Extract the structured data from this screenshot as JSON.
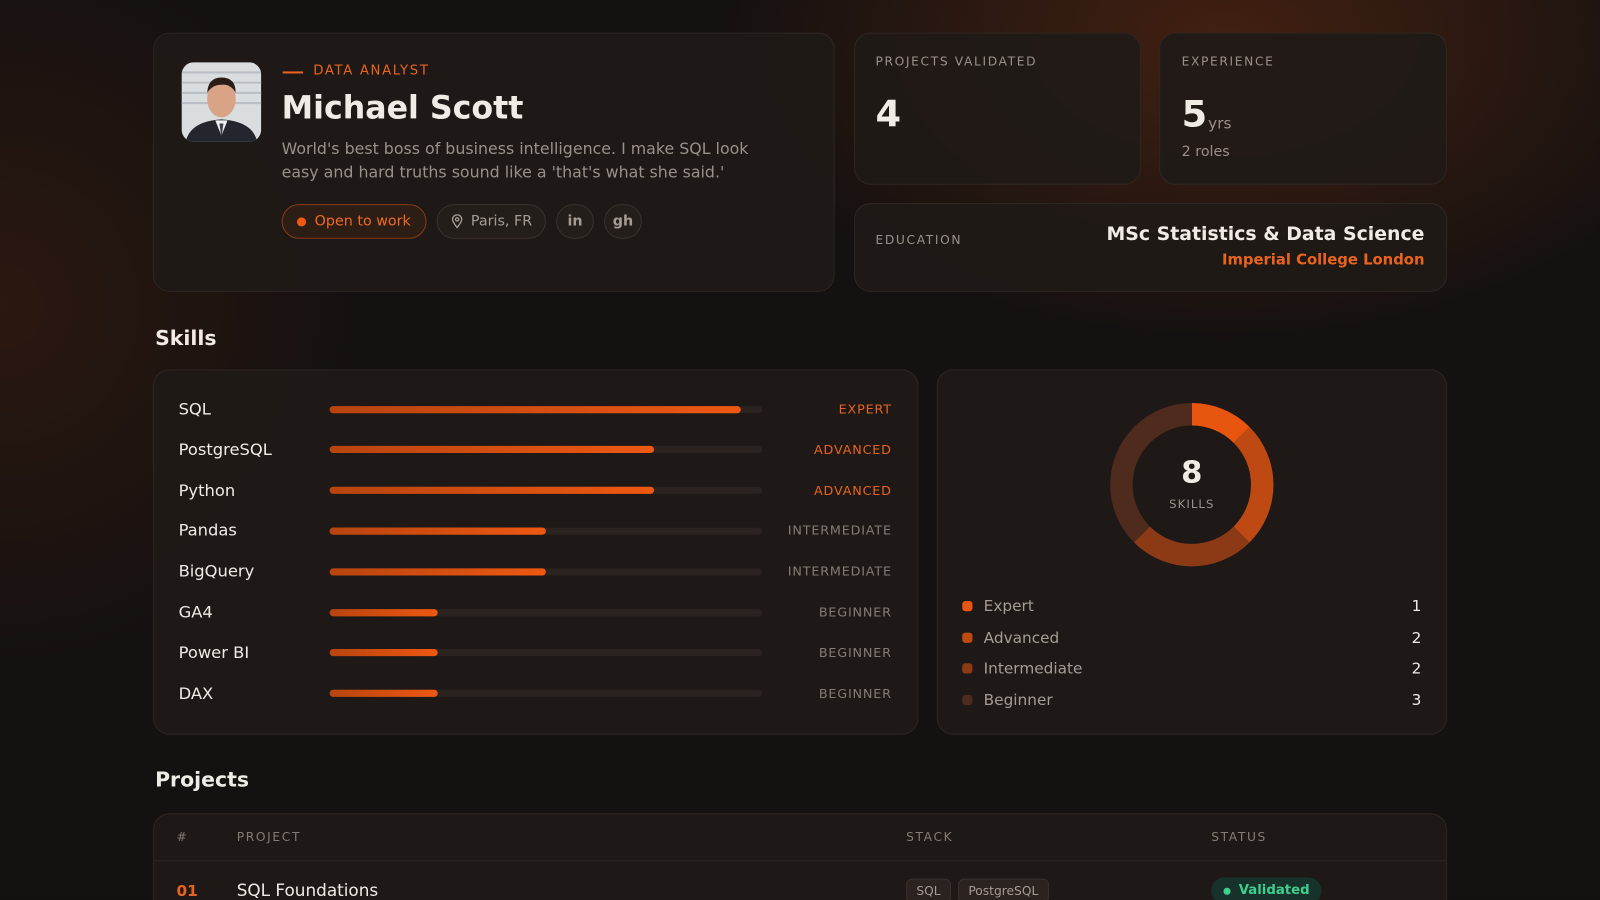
{
  "profile": {
    "role": "DATA ANALYST",
    "name": "Michael Scott",
    "bio": "World's best boss of business intelligence. I make SQL look easy and hard truths sound like a 'that's what she said.'",
    "status": "Open to work",
    "location": "Paris, FR",
    "links": [
      "in",
      "gh"
    ]
  },
  "stats": [
    {
      "label": "PROJECTS VALIDATED",
      "value": 4
    },
    {
      "label": "EXPERIENCE",
      "value": 5,
      "unit": "yrs",
      "note": "2 roles"
    }
  ],
  "education": {
    "label": "EDUCATION",
    "degree": "MSc Statistics & Data Science",
    "school": "Imperial College London"
  },
  "skills": {
    "title": "Skills",
    "items": [
      {
        "name": "SQL",
        "level_label": "EXPERT",
        "level": 0.95,
        "label_color": "#e8641e"
      },
      {
        "name": "PostgreSQL",
        "level_label": "ADVANCED",
        "level": 0.75,
        "label_color": "#e8641e"
      },
      {
        "name": "Python",
        "level_label": "ADVANCED",
        "level": 0.75,
        "label_color": "#e8641e"
      },
      {
        "name": "Pandas",
        "level_label": "INTERMEDIATE",
        "level": 0.5,
        "label_color": "#857b74"
      },
      {
        "name": "BigQuery",
        "level_label": "INTERMEDIATE",
        "level": 0.5,
        "label_color": "#857b74"
      },
      {
        "name": "GA4",
        "level_label": "BEGINNER",
        "level": 0.25,
        "label_color": "#857b74"
      },
      {
        "name": "Power BI",
        "level_label": "BEGINNER",
        "level": 0.25,
        "label_color": "#857b74"
      },
      {
        "name": "DAX",
        "level_label": "BEGINNER",
        "level": 0.25,
        "label_color": "#857b74"
      }
    ]
  },
  "skill_summary": {
    "total": 8,
    "total_label": "SKILLS",
    "legend": [
      {
        "name": "Expert",
        "count": 1,
        "color": "#e8550f"
      },
      {
        "name": "Advanced",
        "count": 2,
        "color": "#bf4912"
      },
      {
        "name": "Intermediate",
        "count": 2,
        "color": "#8c3a16"
      },
      {
        "name": "Beginner",
        "count": 3,
        "color": "#4e2b1d"
      }
    ]
  },
  "projects": {
    "title": "Projects",
    "columns": [
      "#",
      "PROJECT",
      "STACK",
      "STATUS"
    ],
    "rows": [
      {
        "number": "01",
        "name": "SQL Foundations",
        "stack": [
          "SQL",
          "PostgreSQL"
        ],
        "status": "Validated"
      }
    ]
  }
}
